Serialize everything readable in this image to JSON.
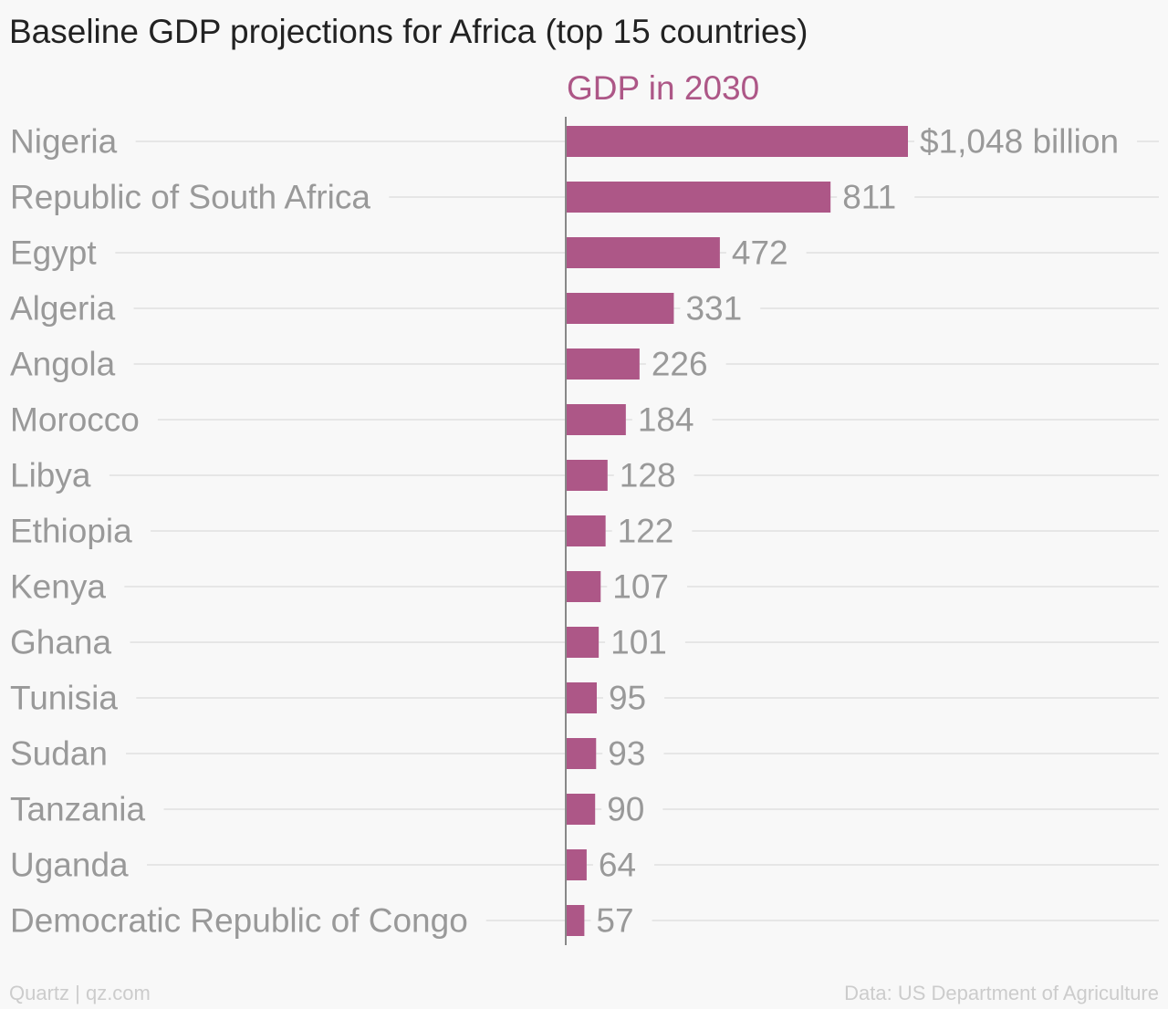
{
  "title": "Baseline GDP projections for Africa (top 15 countries)",
  "footer": {
    "source_left": "Quartz | qz.com",
    "source_right": "Data: US Department of Agriculture"
  },
  "colors": {
    "bar": "#ad5787",
    "header": "#ad5787",
    "label": "#999999",
    "grid": "#e6e6e6",
    "axis": "#888888"
  },
  "chart_data": {
    "type": "bar",
    "orientation": "horizontal",
    "series_header": "GDP in 2030",
    "categories": [
      "Nigeria",
      "Republic of South Africa",
      "Egypt",
      "Algeria",
      "Angola",
      "Morocco",
      "Libya",
      "Ethiopia",
      "Kenya",
      "Ghana",
      "Tunisia",
      "Sudan",
      "Tanzania",
      "Uganda",
      "Democratic Republic of Congo"
    ],
    "values": [
      1048,
      811,
      472,
      331,
      226,
      184,
      128,
      122,
      107,
      101,
      95,
      93,
      90,
      64,
      57
    ],
    "value_labels": [
      "$1,048 billion",
      "811",
      "472",
      "331",
      "226",
      "184",
      "128",
      "122",
      "107",
      "101",
      "95",
      "93",
      "90",
      "64",
      "57"
    ],
    "xlim": [
      0,
      1048
    ],
    "grid": true,
    "legend": "none"
  }
}
